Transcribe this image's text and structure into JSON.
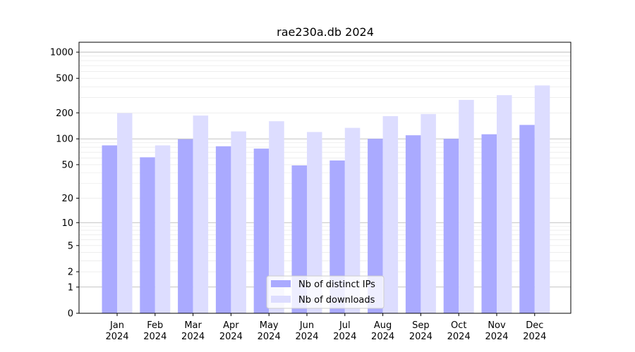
{
  "chart_data": {
    "type": "bar",
    "title": "rae230a.db 2024",
    "scale": "symlog",
    "ylim": [
      0,
      1300
    ],
    "y_ticks": [
      0,
      1,
      2,
      5,
      10,
      20,
      50,
      100,
      200,
      500,
      1000
    ],
    "categories": [
      "Jan\n2024",
      "Feb\n2024",
      "Mar\n2024",
      "Apr\n2024",
      "May\n2024",
      "Jun\n2024",
      "Jul\n2024",
      "Aug\n2024",
      "Sep\n2024",
      "Oct\n2024",
      "Nov\n2024",
      "Dec\n2024"
    ],
    "series": [
      {
        "name": "Nb of distinct IPs",
        "color": "#aaaaff",
        "values": [
          84,
          61,
          99,
          82,
          77,
          49,
          56,
          100,
          110,
          100,
          113,
          145
        ]
      },
      {
        "name": "Nb of downloads",
        "color": "#ddddff",
        "values": [
          198,
          84,
          186,
          122,
          160,
          120,
          134,
          183,
          194,
          282,
          320,
          414
        ]
      }
    ],
    "legend": "bottom-center",
    "grid": true
  }
}
